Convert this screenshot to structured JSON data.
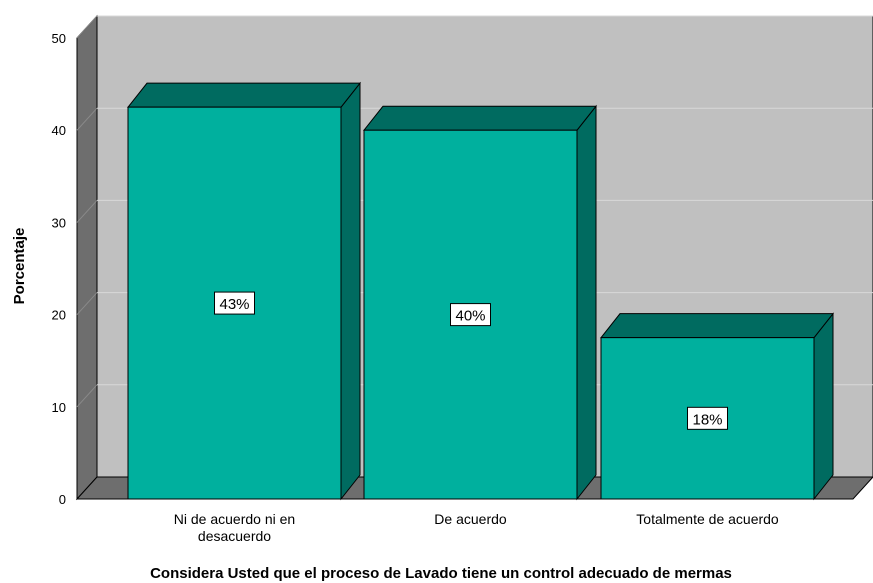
{
  "chart_data": {
    "type": "bar",
    "categories": [
      [
        "Ni de acuerdo ni en",
        "desacuerdo"
      ],
      [
        "De acuerdo"
      ],
      [
        "Totalmente de acuerdo"
      ]
    ],
    "values": [
      42.5,
      40,
      17.5
    ],
    "data_labels": [
      "43%",
      "40%",
      "18%"
    ],
    "title": "",
    "xlabel": "Considera Usted que el proceso de Lavado tiene un control adecuado de mermas",
    "ylabel": "Porcentaje",
    "ylim": [
      0,
      50
    ],
    "yticks": [
      0,
      10,
      20,
      30,
      40,
      50
    ],
    "grid": true,
    "legend": "none",
    "style": "3d",
    "colors": {
      "bar_front": "#00b09e",
      "bar_top": "#006b60",
      "bar_side": "#006b60",
      "plot_back": "#c0c0c0",
      "plot_side": "#6e6e6e",
      "plot_floor": "#6e6e6e",
      "gridline": "#d8d8d8"
    }
  }
}
